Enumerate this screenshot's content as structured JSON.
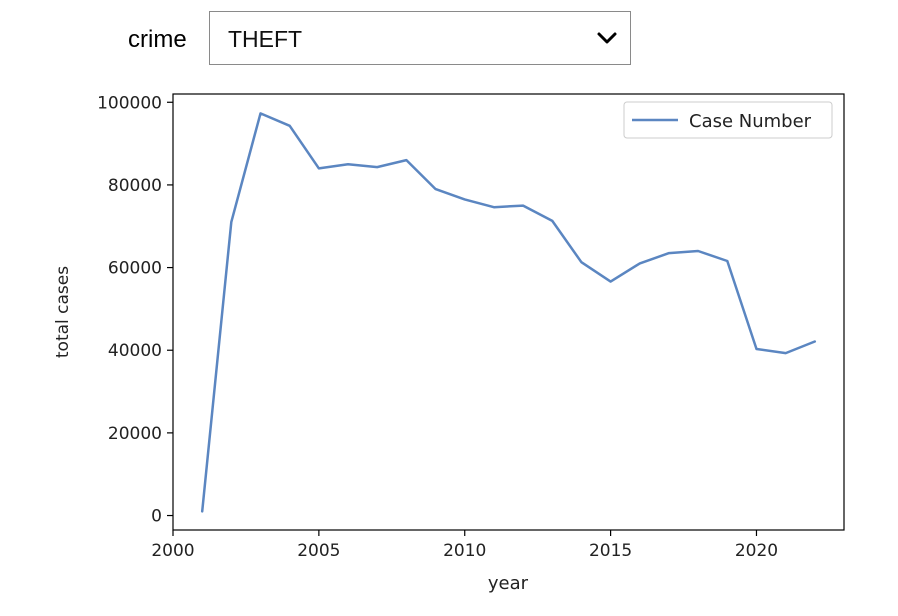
{
  "filter": {
    "label": "crime",
    "selected": "THEFT"
  },
  "chart_data": {
    "type": "line",
    "xlabel": "year",
    "ylabel": "total cases",
    "xlim": [
      2000,
      2023
    ],
    "ylim": [
      -3500,
      102000
    ],
    "xticks": [
      2000,
      2005,
      2010,
      2015,
      2020
    ],
    "yticks": [
      0,
      20000,
      40000,
      60000,
      80000,
      100000
    ],
    "legend_position": "top-right",
    "grid": false,
    "series": [
      {
        "name": "Case Number",
        "color": "#5b86c1",
        "x": [
          2001,
          2002,
          2003,
          2004,
          2005,
          2006,
          2007,
          2008,
          2009,
          2010,
          2011,
          2012,
          2013,
          2014,
          2015,
          2016,
          2017,
          2018,
          2019,
          2020,
          2021,
          2022
        ],
        "values": [
          1000,
          71000,
          97300,
          94300,
          84000,
          85000,
          84300,
          86000,
          79000,
          76500,
          74600,
          75000,
          71300,
          61300,
          56600,
          61000,
          63500,
          64000,
          61600,
          40300,
          39300,
          42100
        ]
      }
    ]
  }
}
